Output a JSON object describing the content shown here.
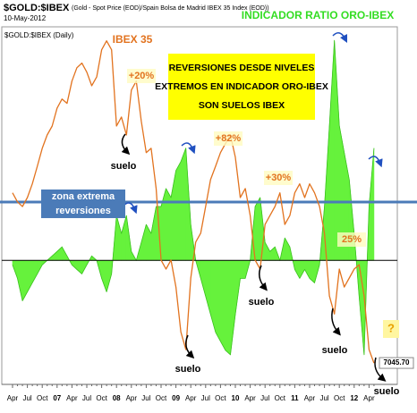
{
  "chart_data": {
    "type": "line",
    "title": "$GOLD:$IBEX",
    "subtitle": "(Gold - Spot Price (EOD)/Spain Bolsa de Madrid IBEX 35 Index (EOD))",
    "date": "10-May-2012",
    "panel_label": "$GOLD:$IBEX (Daily)",
    "categories": [
      "Apr",
      null,
      null,
      "Jul",
      null,
      null,
      "Oct",
      null,
      null,
      "07",
      null,
      null,
      "Apr",
      null,
      null,
      "Jul",
      null,
      null,
      "Oct",
      null,
      null,
      "08",
      null,
      null,
      "Apr",
      null,
      null,
      "Jul",
      null,
      null,
      "Oct",
      null,
      null,
      "09",
      null,
      null,
      "Apr",
      null,
      null,
      "Jul",
      null,
      null,
      "Oct",
      null,
      null,
      "10",
      null,
      null,
      "Apr",
      null,
      null,
      "Jul",
      null,
      null,
      "Oct",
      null,
      null,
      "11",
      null,
      null,
      "Apr",
      null,
      null,
      "Jul",
      null,
      null,
      "Oct",
      null,
      null,
      "12",
      null,
      null,
      "Apr",
      null
    ],
    "series": [
      {
        "name": "IBEX 35",
        "color": "#e2731f",
        "values": [
          11780,
          11530,
          11400,
          11650,
          12030,
          12520,
          13020,
          13390,
          13640,
          14140,
          14390,
          14270,
          14890,
          15260,
          15390,
          15140,
          14760,
          15010,
          15760,
          16010,
          15760,
          13640,
          13890,
          13390,
          14640,
          14890,
          13770,
          12900,
          13020,
          11900,
          9910,
          9660,
          9910,
          9160,
          7910,
          7420,
          9410,
          10410,
          10660,
          11400,
          12150,
          12520,
          12900,
          13150,
          13390,
          12770,
          11650,
          11900,
          11150,
          9910,
          9660,
          10900,
          11150,
          11400,
          11780,
          10900,
          11150,
          11780,
          12030,
          11650,
          12030,
          11780,
          11400,
          10660,
          8910,
          8410,
          9660,
          9160,
          9410,
          9660,
          9780,
          8910,
          7420,
          7045.7
        ]
      },
      {
        "name": "INDICADOR RATIO ORO-IBEX",
        "color": "#66f23c",
        "axis": "y2",
        "values": [
          -5,
          -20,
          -45,
          -35,
          -25,
          -15,
          -5,
          0,
          5,
          10,
          15,
          5,
          -5,
          -10,
          -15,
          -5,
          5,
          0,
          -20,
          -35,
          -15,
          50,
          30,
          50,
          10,
          0,
          20,
          40,
          30,
          60,
          60,
          80,
          70,
          100,
          110,
          125,
          40,
          0,
          -20,
          -40,
          -60,
          -80,
          -90,
          -100,
          -105,
          -60,
          -20,
          -20,
          0,
          60,
          70,
          20,
          10,
          15,
          0,
          25,
          15,
          -10,
          -20,
          -10,
          -20,
          -25,
          -5,
          60,
          150,
          245,
          150,
          120,
          90,
          30,
          -40,
          -105,
          60,
          125
        ]
      }
    ],
    "last_value_label": "7045.70",
    "ylim": [
      6450,
      16400
    ],
    "y2lim": [
      -138,
      260
    ],
    "threshold": {
      "value": 65,
      "label_lines": [
        "zona extrema",
        "reversiones"
      ],
      "color": "#4b7bb8"
    },
    "box_lines": [
      "REVERSIONES DESDE NIVELES",
      "EXTREMOS EN INDICADOR ORO-IBEX",
      "SON SUELOS IBEX"
    ],
    "gains": [
      "+20%",
      "+82%",
      "+30%",
      "25%"
    ],
    "question": "?",
    "suelo_labels": [
      "suelo",
      "suelo",
      "suelo",
      "suelo",
      "suelo"
    ]
  }
}
